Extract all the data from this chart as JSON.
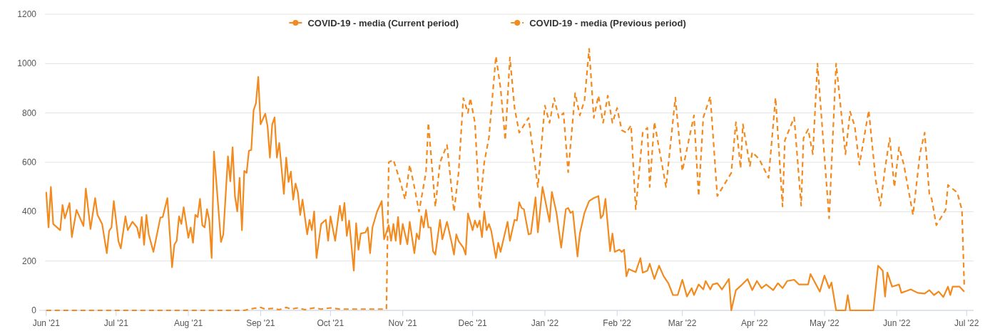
{
  "chart_data": {
    "type": "line",
    "xlim": [
      "2021-05-29",
      "2022-07-04"
    ],
    "xticks": [
      {
        "value": "2021-06-01",
        "label": "Jun '21"
      },
      {
        "value": "2021-07-01",
        "label": "Jul '21"
      },
      {
        "value": "2021-08-01",
        "label": "Aug '21"
      },
      {
        "value": "2021-09-01",
        "label": "Sep '21"
      },
      {
        "value": "2021-10-01",
        "label": "Oct '21"
      },
      {
        "value": "2021-11-01",
        "label": "Nov '21"
      },
      {
        "value": "2021-12-01",
        "label": "Dec '21"
      },
      {
        "value": "2022-01-01",
        "label": "Jan '22"
      },
      {
        "value": "2022-02-01",
        "label": "Feb '22"
      },
      {
        "value": "2022-03-01",
        "label": "Mar '22"
      },
      {
        "value": "2022-04-01",
        "label": "Apr '22"
      },
      {
        "value": "2022-05-01",
        "label": "May '22"
      },
      {
        "value": "2022-06-01",
        "label": "Jun '22"
      },
      {
        "value": "2022-07-01",
        "label": "Jul '22"
      }
    ],
    "ylim": [
      0,
      1200
    ],
    "yticks": [
      0,
      200,
      400,
      600,
      800,
      1000,
      1200
    ],
    "grid": "y",
    "legend": "top",
    "series": [
      {
        "name": "COVID-19 - media (Current period)",
        "color": "#f28a1e",
        "line_style": "solid",
        "x": [
          "2021-06-01",
          "2021-06-02",
          "2021-06-03",
          "2021-06-04",
          "2021-06-07",
          "2021-06-08",
          "2021-06-09",
          "2021-06-11",
          "2021-06-12",
          "2021-06-14",
          "2021-06-17",
          "2021-06-18",
          "2021-06-20",
          "2021-06-22",
          "2021-06-23",
          "2021-06-25",
          "2021-06-27",
          "2021-06-28",
          "2021-06-29",
          "2021-06-30",
          "2021-07-02",
          "2021-07-03",
          "2021-07-05",
          "2021-07-06",
          "2021-07-08",
          "2021-07-10",
          "2021-07-11",
          "2021-07-12",
          "2021-07-13",
          "2021-07-14",
          "2021-07-15",
          "2021-07-17",
          "2021-07-20",
          "2021-07-21",
          "2021-07-23",
          "2021-07-25",
          "2021-07-26",
          "2021-07-27",
          "2021-07-28",
          "2021-07-29",
          "2021-07-30",
          "2021-08-01",
          "2021-08-02",
          "2021-08-03",
          "2021-08-04",
          "2021-08-05",
          "2021-08-06",
          "2021-08-07",
          "2021-08-08",
          "2021-08-09",
          "2021-08-10",
          "2021-08-11",
          "2021-08-12",
          "2021-08-15",
          "2021-08-16",
          "2021-08-18",
          "2021-08-19",
          "2021-08-20",
          "2021-08-21",
          "2021-08-22",
          "2021-08-23",
          "2021-08-24",
          "2021-08-25",
          "2021-08-26",
          "2021-08-27",
          "2021-08-28",
          "2021-08-29",
          "2021-08-30",
          "2021-08-31",
          "2021-09-01",
          "2021-09-03",
          "2021-09-04",
          "2021-09-05",
          "2021-09-06",
          "2021-09-07",
          "2021-09-08",
          "2021-09-09",
          "2021-09-11",
          "2021-09-12",
          "2021-09-13",
          "2021-09-14",
          "2021-09-15",
          "2021-09-16",
          "2021-09-17",
          "2021-09-18",
          "2021-09-19",
          "2021-09-21",
          "2021-09-22",
          "2021-09-23",
          "2021-09-24",
          "2021-09-25",
          "2021-09-27",
          "2021-09-29",
          "2021-09-30",
          "2021-10-01",
          "2021-10-03",
          "2021-10-05",
          "2021-10-06",
          "2021-10-07",
          "2021-10-08",
          "2021-10-09",
          "2021-10-11",
          "2021-10-12",
          "2021-10-13",
          "2021-10-14",
          "2021-10-16",
          "2021-10-17",
          "2021-10-18",
          "2021-10-19",
          "2021-10-21",
          "2021-10-23",
          "2021-10-24",
          "2021-10-26",
          "2021-10-27",
          "2021-10-28",
          "2021-10-29",
          "2021-10-30",
          "2021-10-31",
          "2021-11-01",
          "2021-11-03",
          "2021-11-04",
          "2021-11-06",
          "2021-11-07",
          "2021-11-08",
          "2021-11-09",
          "2021-11-10",
          "2021-11-11",
          "2021-11-12",
          "2021-11-13",
          "2021-11-14",
          "2021-11-15",
          "2021-11-17",
          "2021-11-18",
          "2021-11-20",
          "2021-11-22",
          "2021-11-23",
          "2021-11-24",
          "2021-11-25",
          "2021-11-27",
          "2021-11-28",
          "2021-11-29",
          "2021-12-01",
          "2021-12-02",
          "2021-12-03",
          "2021-12-04",
          "2021-12-05",
          "2021-12-06",
          "2021-12-07",
          "2021-12-08",
          "2021-12-09",
          "2021-12-11",
          "2021-12-12",
          "2021-12-13",
          "2021-12-16",
          "2021-12-17",
          "2021-12-19",
          "2021-12-20",
          "2021-12-21",
          "2021-12-22",
          "2021-12-23",
          "2021-12-25",
          "2021-12-26",
          "2021-12-28",
          "2021-12-29",
          "2021-12-31",
          "2022-01-03",
          "2022-01-04",
          "2022-01-06",
          "2022-01-08",
          "2022-01-10",
          "2022-01-11",
          "2022-01-12",
          "2022-01-13",
          "2022-01-15",
          "2022-01-16",
          "2022-01-18",
          "2022-01-20",
          "2022-01-22",
          "2022-01-24",
          "2022-01-25",
          "2022-01-26",
          "2022-01-27",
          "2022-01-29",
          "2022-01-30",
          "2022-01-31",
          "2022-02-02",
          "2022-02-03",
          "2022-02-04",
          "2022-02-05",
          "2022-02-06",
          "2022-02-09",
          "2022-02-11",
          "2022-02-12",
          "2022-02-14",
          "2022-02-15",
          "2022-02-17",
          "2022-02-19",
          "2022-02-21",
          "2022-02-23",
          "2022-02-25",
          "2022-02-27",
          "2022-03-01",
          "2022-03-03",
          "2022-03-05",
          "2022-03-06",
          "2022-03-08",
          "2022-03-10",
          "2022-03-11",
          "2022-03-13",
          "2022-03-14",
          "2022-03-16",
          "2022-03-18",
          "2022-03-21",
          "2022-03-22",
          "2022-03-24",
          "2022-03-26",
          "2022-03-29",
          "2022-03-31",
          "2022-04-02",
          "2022-04-04",
          "2022-04-06",
          "2022-04-09",
          "2022-04-11",
          "2022-04-13",
          "2022-04-15",
          "2022-04-18",
          "2022-04-20",
          "2022-04-24",
          "2022-04-25",
          "2022-04-29",
          "2022-05-01",
          "2022-05-03",
          "2022-05-04",
          "2022-05-06",
          "2022-05-10",
          "2022-05-11",
          "2022-05-12",
          "2022-05-22",
          "2022-05-24",
          "2022-05-26",
          "2022-05-27",
          "2022-05-28",
          "2022-05-30",
          "2022-06-02",
          "2022-06-03",
          "2022-06-07",
          "2022-06-10",
          "2022-06-13",
          "2022-06-15",
          "2022-06-17",
          "2022-06-19",
          "2022-06-21",
          "2022-06-23",
          "2022-06-24",
          "2022-06-25",
          "2022-06-28",
          "2022-06-30"
        ],
        "values": [
          480,
          336,
          500,
          350,
          325,
          427,
          373,
          435,
          297,
          407,
          342,
          494,
          330,
          455,
          387,
          350,
          232,
          322,
          336,
          443,
          280,
          251,
          381,
          325,
          359,
          336,
          294,
          378,
          266,
          387,
          308,
          237,
          376,
          378,
          455,
          175,
          266,
          282,
          381,
          350,
          418,
          294,
          336,
          274,
          387,
          378,
          452,
          345,
          336,
          410,
          364,
          212,
          644,
          277,
          308,
          624,
          523,
          661,
          463,
          401,
          537,
          325,
          565,
          557,
          647,
          650,
          811,
          839,
          946,
          754,
          797,
          746,
          619,
          754,
          782,
          619,
          678,
          472,
          619,
          520,
          562,
          449,
          514,
          477,
          387,
          449,
          308,
          367,
          325,
          401,
          212,
          350,
          367,
          282,
          381,
          282,
          424,
          364,
          435,
          302,
          364,
          161,
          353,
          246,
          311,
          316,
          336,
          232,
          336,
          401,
          443,
          288,
          345,
          282,
          350,
          282,
          378,
          268,
          350,
          268,
          359,
          232,
          311,
          288,
          381,
          336,
          407,
          336,
          336,
          240,
          226,
          367,
          288,
          359,
          274,
          226,
          308,
          280,
          254,
          226,
          393,
          325,
          364,
          336,
          364,
          297,
          401,
          325,
          350,
          322,
          212,
          274,
          237,
          359,
          282,
          367,
          364,
          438,
          415,
          410,
          308,
          311,
          458,
          316,
          500,
          359,
          480,
          395,
          254,
          410,
          415,
          395,
          401,
          218,
          311,
          395,
          443,
          455,
          463,
          373,
          387,
          452,
          240,
          311,
          237,
          246,
          237,
          246,
          138,
          167,
          155,
          212,
          153,
          161,
          189,
          127,
          181,
          138,
          110,
          62,
          62,
          124,
          56,
          90,
          62,
          105,
          85,
          119,
          85,
          105,
          110,
          85,
          127,
          0,
          82,
          99,
          127,
          82,
          119,
          90,
          105,
          82,
          110,
          90,
          119,
          124,
          105,
          105,
          147,
          76,
          141,
          90,
          113,
          0,
          0,
          62,
          0,
          0,
          181,
          161,
          56,
          153,
          96,
          105,
          71,
          85,
          71,
          68,
          82,
          62,
          76,
          54,
          96,
          62,
          96,
          96,
          76
        ]
      },
      {
        "name": "COVID-19 - media (Previous period)",
        "color": "#f28a1e",
        "line_style": "dashed",
        "x": [
          "2021-06-01",
          "2021-08-25",
          "2021-08-29",
          "2021-09-01",
          "2021-09-03",
          "2021-09-06",
          "2021-09-09",
          "2021-09-12",
          "2021-09-14",
          "2021-09-17",
          "2021-09-20",
          "2021-09-24",
          "2021-09-27",
          "2021-10-01",
          "2021-10-05",
          "2021-10-25",
          "2021-10-26",
          "2021-10-28",
          "2021-10-31",
          "2021-11-02",
          "2021-11-04",
          "2021-11-06",
          "2021-11-08",
          "2021-11-11",
          "2021-11-12",
          "2021-11-15",
          "2021-11-17",
          "2021-11-20",
          "2021-11-23",
          "2021-11-25",
          "2021-11-27",
          "2021-11-29",
          "2021-11-30",
          "2021-12-02",
          "2021-12-04",
          "2021-12-06",
          "2021-12-08",
          "2021-12-11",
          "2021-12-13",
          "2021-12-15",
          "2021-12-17",
          "2021-12-19",
          "2021-12-21",
          "2021-12-25",
          "2021-12-27",
          "2021-12-29",
          "2022-01-01",
          "2022-01-03",
          "2022-01-05",
          "2022-01-07",
          "2022-01-09",
          "2022-01-11",
          "2022-01-14",
          "2022-01-16",
          "2022-01-18",
          "2022-01-20",
          "2022-01-22",
          "2022-01-24",
          "2022-01-26",
          "2022-01-28",
          "2022-01-30",
          "2022-02-01",
          "2022-02-03",
          "2022-02-05",
          "2022-02-07",
          "2022-02-09",
          "2022-02-12",
          "2022-02-14",
          "2022-02-15",
          "2022-02-17",
          "2022-02-22",
          "2022-02-26",
          "2022-03-01",
          "2022-03-06",
          "2022-03-08",
          "2022-03-10",
          "2022-03-13",
          "2022-03-16",
          "2022-03-22",
          "2022-03-24",
          "2022-03-26",
          "2022-03-27",
          "2022-03-30",
          "2022-03-31",
          "2022-04-03",
          "2022-04-07",
          "2022-04-10",
          "2022-04-13",
          "2022-04-14",
          "2022-04-18",
          "2022-04-21",
          "2022-04-22",
          "2022-04-24",
          "2022-04-26",
          "2022-04-28",
          "2022-05-01",
          "2022-05-03",
          "2022-05-06",
          "2022-05-08",
          "2022-05-10",
          "2022-05-12",
          "2022-05-14",
          "2022-05-16",
          "2022-05-20",
          "2022-05-23",
          "2022-05-25",
          "2022-05-27",
          "2022-05-29",
          "2022-05-31",
          "2022-06-02",
          "2022-06-04",
          "2022-06-08",
          "2022-06-11",
          "2022-06-13",
          "2022-06-15",
          "2022-06-16",
          "2022-06-18",
          "2022-06-22",
          "2022-06-23",
          "2022-06-27",
          "2022-06-29",
          "2022-06-30"
        ],
        "values": [
          0,
          0,
          8,
          12,
          5,
          8,
          3,
          12,
          5,
          10,
          3,
          10,
          5,
          10,
          5,
          5,
          600,
          610,
          520,
          450,
          590,
          500,
          400,
          560,
          760,
          420,
          600,
          670,
          400,
          560,
          860,
          800,
          860,
          760,
          410,
          600,
          700,
          1030,
          900,
          690,
          1025,
          820,
          720,
          780,
          640,
          500,
          830,
          760,
          860,
          780,
          800,
          560,
          880,
          790,
          850,
          1060,
          780,
          870,
          760,
          870,
          760,
          820,
          730,
          720,
          750,
          410,
          720,
          740,
          500,
          763,
          500,
          862,
          565,
          790,
          463,
          782,
          867,
          463,
          557,
          763,
          576,
          754,
          585,
          641,
          613,
          537,
          862,
          421,
          689,
          782,
          424,
          698,
          734,
          633,
          1000,
          621,
          373,
          1000,
          819,
          633,
          805,
          746,
          590,
          810,
          528,
          424,
          576,
          698,
          500,
          661,
          593,
          387,
          636,
          720,
          472,
          452,
          345,
          407,
          508,
          477,
          407,
          96
        ]
      }
    ]
  }
}
